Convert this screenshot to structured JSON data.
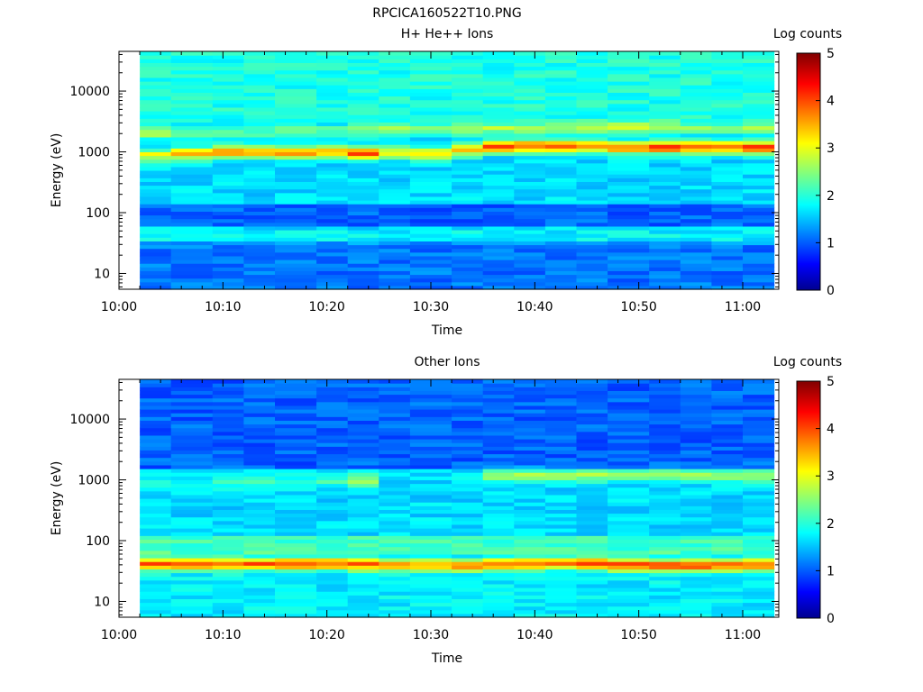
{
  "figure_title": "RPCICA160522T10.PNG",
  "chart_data": [
    {
      "type": "heatmap",
      "title": "H+ He++ Ions",
      "xlabel": "Time",
      "ylabel": "Energy (eV)",
      "x_ticks": [
        "10:00",
        "10:10",
        "10:20",
        "10:30",
        "10:40",
        "10:50",
        "11:00"
      ],
      "y_scale": "log",
      "y_ticks": [
        "10",
        "100",
        "1000",
        "10000"
      ],
      "ylim": [
        5.5,
        45000
      ],
      "data_time_range": [
        "10:02",
        "11:03"
      ],
      "colorbar": {
        "label": "Log counts",
        "ticks": [
          "0",
          "1",
          "2",
          "3",
          "4",
          "5"
        ],
        "range": [
          0,
          5
        ],
        "colormap": "jet"
      },
      "time_columns": [
        "10:02",
        "10:05",
        "10:09",
        "10:12",
        "10:15",
        "10:19",
        "10:22",
        "10:25",
        "10:28",
        "10:32",
        "10:35",
        "10:38",
        "10:41",
        "10:44",
        "10:47",
        "10:51",
        "10:54",
        "10:57",
        "11:00"
      ],
      "features": [
        {
          "feature": "background_high_energy",
          "energy_range_eV": [
            3000,
            45000
          ],
          "log_counts": 2.0
        },
        {
          "feature": "main_band",
          "energy_eV": [
            900,
            950,
            1000,
            1000,
            1000,
            1000,
            950,
            1000,
            950,
            1100,
            1250,
            1250,
            1250,
            1250,
            1200,
            1200,
            1200,
            1200,
            1200
          ],
          "log_counts": [
            3.0,
            3.4,
            3.7,
            3.6,
            3.6,
            3.5,
            4.1,
            3.2,
            3.3,
            3.5,
            4.0,
            3.9,
            3.9,
            3.8,
            3.7,
            4.0,
            4.0,
            3.9,
            4.0
          ]
        },
        {
          "feature": "secondary_band",
          "energy_eV": [
            2100,
            2100,
            2100,
            2100,
            2200,
            2200,
            2300,
            2400,
            2400,
            2400,
            2500,
            2500,
            2500,
            2500,
            2600,
            2600,
            2500,
            2500,
            2500
          ],
          "log_counts": [
            2.7,
            2.3,
            2.3,
            2.3,
            2.4,
            2.4,
            2.5,
            2.6,
            2.5,
            2.6,
            2.7,
            2.6,
            2.6,
            2.6,
            2.8,
            2.7,
            2.6,
            2.5,
            2.6
          ]
        },
        {
          "feature": "low_band",
          "energy_eV": 42,
          "log_counts": 1.9
        },
        {
          "feature": "trough_mid",
          "energy_range_eV": [
            60,
            150
          ],
          "log_counts": 1.1
        },
        {
          "feature": "trough_low",
          "energy_range_eV": [
            5.5,
            35
          ],
          "log_counts": 1.2
        }
      ]
    },
    {
      "type": "heatmap",
      "title": "Other Ions",
      "xlabel": "Time",
      "ylabel": "Energy (eV)",
      "x_ticks": [
        "10:00",
        "10:10",
        "10:20",
        "10:30",
        "10:40",
        "10:50",
        "11:00"
      ],
      "y_scale": "log",
      "y_ticks": [
        "10",
        "100",
        "1000",
        "10000"
      ],
      "ylim": [
        5.5,
        45000
      ],
      "data_time_range": [
        "10:02",
        "11:03"
      ],
      "colorbar": {
        "label": "Log counts",
        "ticks": [
          "0",
          "1",
          "2",
          "3",
          "4",
          "5"
        ],
        "range": [
          0,
          5
        ],
        "colormap": "jet"
      },
      "time_columns": [
        "10:02",
        "10:05",
        "10:09",
        "10:12",
        "10:15",
        "10:19",
        "10:22",
        "10:25",
        "10:28",
        "10:32",
        "10:35",
        "10:38",
        "10:41",
        "10:44",
        "10:47",
        "10:51",
        "10:54",
        "10:57",
        "11:00"
      ],
      "features": [
        {
          "feature": "background_high_energy",
          "energy_range_eV": [
            1500,
            45000
          ],
          "log_counts": 1.1
        },
        {
          "feature": "main_band",
          "energy_eV": [
            950,
            950,
            950,
            950,
            950,
            1000,
            1000,
            1000,
            1050,
            1050,
            1200,
            1200,
            1200,
            1200,
            1200,
            1200,
            1200,
            1200,
            1200
          ],
          "log_counts": [
            1.9,
            1.9,
            2.2,
            2.1,
            2.1,
            2.2,
            2.6,
            1.7,
            1.7,
            1.9,
            2.7,
            2.7,
            2.7,
            2.7,
            2.7,
            2.6,
            2.6,
            2.6,
            2.7
          ]
        },
        {
          "feature": "low_band",
          "energy_eV": [
            42,
            42,
            42,
            42,
            42,
            42,
            41,
            40,
            40,
            40,
            42,
            42,
            43,
            43,
            40,
            40,
            40,
            40,
            40
          ],
          "log_counts": [
            4.0,
            3.9,
            3.9,
            4.0,
            4.0,
            3.9,
            3.9,
            3.8,
            3.7,
            3.8,
            3.8,
            3.9,
            4.0,
            4.0,
            4.0,
            4.0,
            4.0,
            4.0,
            4.0
          ]
        },
        {
          "feature": "bump_above_low_band",
          "energy_range_eV": [
            60,
            120
          ],
          "log_counts": 2.2
        },
        {
          "feature": "below_low_band",
          "energy_range_eV": [
            5.5,
            30
          ],
          "log_counts": 1.8
        }
      ]
    }
  ]
}
